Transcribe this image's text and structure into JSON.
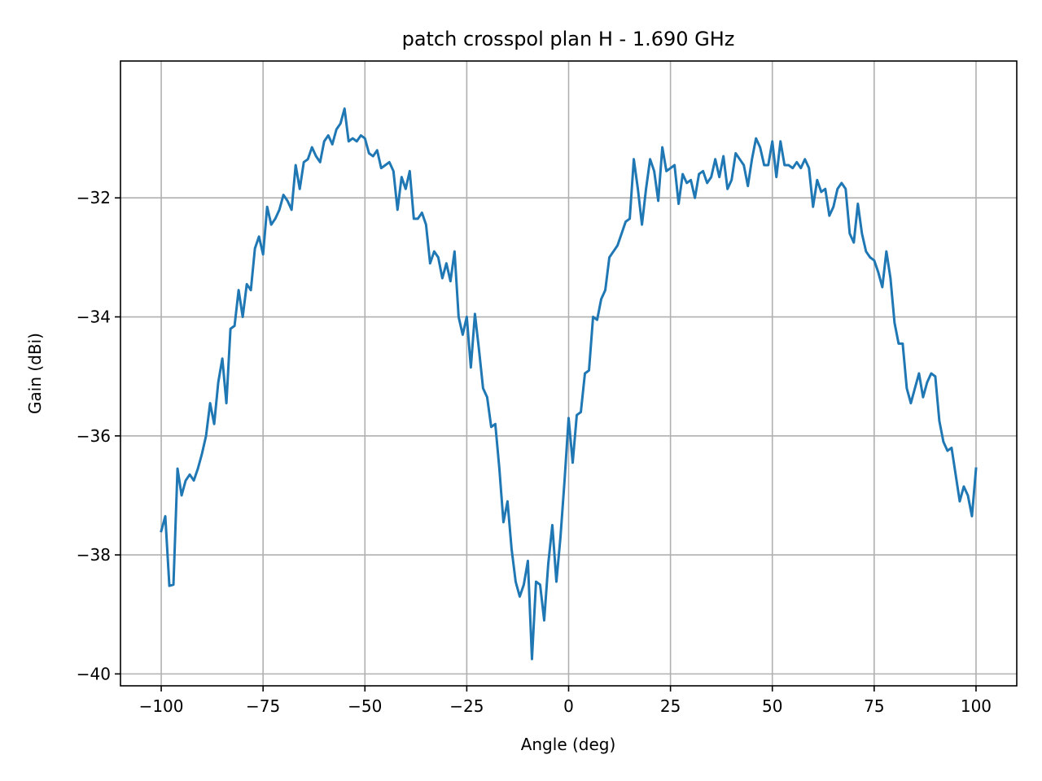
{
  "chart_data": {
    "type": "line",
    "title": "patch crosspol plan H - 1.690 GHz",
    "xlabel": "Angle (deg)",
    "ylabel": "Gain (dBi)",
    "xlim": [
      -110,
      110
    ],
    "ylim": [
      -40.2,
      -29.7
    ],
    "xticks": [
      -100,
      -75,
      -50,
      -25,
      0,
      25,
      50,
      75,
      100
    ],
    "xtick_labels": [
      "−100",
      "−75",
      "−50",
      "−25",
      "0",
      "25",
      "50",
      "75",
      "100"
    ],
    "yticks": [
      -32,
      -34,
      -36,
      -38,
      -40
    ],
    "ytick_labels": [
      "−32",
      "−34",
      "−36",
      "−38",
      "−40"
    ],
    "grid": true,
    "legend": "none",
    "line_color": "#1f77b4",
    "series": [
      {
        "x": [
          -100,
          -99,
          -98,
          -97,
          -96,
          -95,
          -94,
          -93,
          -92,
          -91,
          -90,
          -89,
          -88,
          -87,
          -86,
          -85,
          -84,
          -83,
          -82,
          -81,
          -80,
          -79,
          -78,
          -77,
          -76,
          -75,
          -74,
          -73,
          -72,
          -71,
          -70,
          -69,
          -68,
          -67,
          -66,
          -65,
          -64,
          -63,
          -62,
          -61,
          -60,
          -59,
          -58,
          -57,
          -56,
          -55,
          -54,
          -53,
          -52,
          -51,
          -50,
          -49,
          -48,
          -47,
          -46,
          -45,
          -44,
          -43,
          -42,
          -41,
          -40,
          -39,
          -38,
          -37,
          -36,
          -35,
          -34,
          -33,
          -32,
          -31,
          -30,
          -29,
          -28,
          -27,
          -26,
          -25,
          -24,
          -23,
          -22,
          -21,
          -20,
          -19,
          -18,
          -17,
          -16,
          -15,
          -14,
          -13,
          -12,
          -11,
          -10,
          -9,
          -8,
          -7,
          -6,
          -5,
          -4,
          -3,
          -2,
          -1,
          0,
          1,
          2,
          3,
          4,
          5,
          6,
          7,
          8,
          9,
          10,
          11,
          12,
          13,
          14,
          15,
          16,
          17,
          18,
          19,
          20,
          21,
          22,
          23,
          24,
          25,
          26,
          27,
          28,
          29,
          30,
          31,
          32,
          33,
          34,
          35,
          36,
          37,
          38,
          39,
          40,
          41,
          42,
          43,
          44,
          45,
          46,
          47,
          48,
          49,
          50,
          51,
          52,
          53,
          54,
          55,
          56,
          57,
          58,
          59,
          60,
          61,
          62,
          63,
          64,
          65,
          66,
          67,
          68,
          69,
          70,
          71,
          72,
          73,
          74,
          75,
          76,
          77,
          78,
          79,
          80,
          81,
          82,
          83,
          84,
          85,
          86,
          87,
          88,
          89,
          90,
          91,
          92,
          93,
          94,
          95,
          96,
          97,
          98,
          99,
          100
        ],
        "y": [
          -37.6,
          -37.35,
          -38.52,
          -38.5,
          -36.55,
          -37.0,
          -36.75,
          -36.65,
          -36.75,
          -36.55,
          -36.3,
          -36.0,
          -35.45,
          -35.8,
          -35.1,
          -34.7,
          -35.45,
          -34.2,
          -34.15,
          -33.55,
          -34.0,
          -33.45,
          -33.55,
          -32.85,
          -32.65,
          -32.95,
          -32.15,
          -32.45,
          -32.35,
          -32.2,
          -31.95,
          -32.05,
          -32.2,
          -31.45,
          -31.85,
          -31.4,
          -31.35,
          -31.15,
          -31.3,
          -31.4,
          -31.05,
          -30.95,
          -31.1,
          -30.85,
          -30.75,
          -30.5,
          -31.05,
          -31.0,
          -31.05,
          -30.95,
          -31.0,
          -31.25,
          -31.3,
          -31.2,
          -31.5,
          -31.45,
          -31.4,
          -31.55,
          -32.2,
          -31.65,
          -31.85,
          -31.55,
          -32.35,
          -32.35,
          -32.25,
          -32.45,
          -33.1,
          -32.9,
          -33.0,
          -33.35,
          -33.1,
          -33.4,
          -32.9,
          -34.0,
          -34.3,
          -34.0,
          -34.85,
          -33.95,
          -34.55,
          -35.2,
          -35.35,
          -35.85,
          -35.8,
          -36.55,
          -37.45,
          -37.1,
          -37.9,
          -38.45,
          -38.7,
          -38.5,
          -38.1,
          -39.75,
          -38.45,
          -38.5,
          -39.1,
          -38.15,
          -37.5,
          -38.45,
          -37.7,
          -36.75,
          -35.7,
          -36.45,
          -35.65,
          -35.6,
          -34.95,
          -34.9,
          -34.0,
          -34.05,
          -33.7,
          -33.55,
          -33.0,
          -32.9,
          -32.8,
          -32.6,
          -32.4,
          -32.35,
          -31.35,
          -31.85,
          -32.45,
          -31.85,
          -31.35,
          -31.55,
          -32.05,
          -31.15,
          -31.55,
          -31.5,
          -31.45,
          -32.1,
          -31.6,
          -31.75,
          -31.7,
          -32.0,
          -31.6,
          -31.55,
          -31.75,
          -31.65,
          -31.35,
          -31.65,
          -31.3,
          -31.85,
          -31.7,
          -31.25,
          -31.35,
          -31.45,
          -31.8,
          -31.35,
          -31.0,
          -31.15,
          -31.45,
          -31.45,
          -31.05,
          -31.65,
          -31.05,
          -31.45,
          -31.45,
          -31.5,
          -31.4,
          -31.5,
          -31.35,
          -31.5,
          -32.15,
          -31.7,
          -31.9,
          -31.85,
          -32.3,
          -32.15,
          -31.85,
          -31.75,
          -31.85,
          -32.6,
          -32.75,
          -32.1,
          -32.6,
          -32.9,
          -33.0,
          -33.05,
          -33.25,
          -33.5,
          -32.9,
          -33.35,
          -34.1,
          -34.45,
          -34.45,
          -35.2,
          -35.45,
          -35.2,
          -34.95,
          -35.35,
          -35.1,
          -34.95,
          -35.0,
          -35.75,
          -36.1,
          -36.25,
          -36.2,
          -36.65,
          -37.1,
          -36.85,
          -37.0,
          -37.35,
          -36.55
        ]
      }
    ]
  }
}
